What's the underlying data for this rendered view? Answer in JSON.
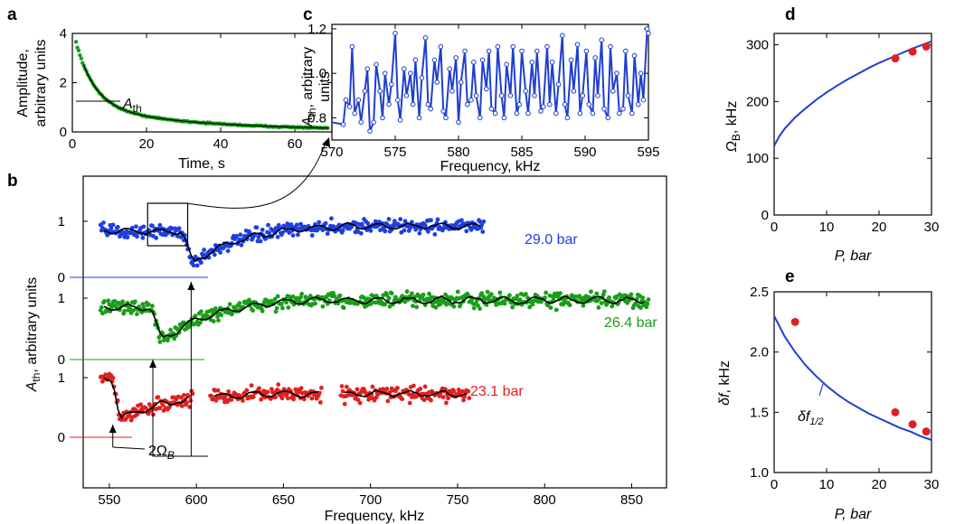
{
  "chart_data": [
    {
      "id": "a",
      "panel_label": "a",
      "type": "scatter",
      "xlabel": "Time, s",
      "ylabel_lines": [
        "Amplitude,",
        "arbitrary units"
      ],
      "xlim": [
        0,
        70
      ],
      "ylim": [
        0,
        4
      ],
      "xticks": [
        0,
        20,
        40,
        60
      ],
      "yticks": [
        0,
        2,
        4
      ],
      "annotation": {
        "text": "A",
        "sub": "th",
        "y": 1.15
      },
      "colors": {
        "points": "#1a9e1a",
        "fit": "#000000"
      },
      "decay": {
        "A0": 2.6,
        "tau": 5.0,
        "offset": 1.0,
        "tau2": 30.0,
        "start": 1.0
      }
    },
    {
      "id": "c",
      "panel_label": "c",
      "type": "line",
      "xlabel": "Frequency, kHz",
      "ylabel": {
        "text": "A",
        "sub": "th",
        "rest": ", arbitrary",
        "line2": "units"
      },
      "xlim": [
        570,
        595
      ],
      "ylim": [
        0.7,
        1.22
      ],
      "xticks": [
        570,
        575,
        580,
        585,
        590,
        595
      ],
      "yticks": [
        0.8,
        1.0,
        1.2
      ],
      "color": "#1f3fcf",
      "x": [
        570.0,
        570.9,
        571.1,
        571.4,
        571.6,
        571.8,
        572.1,
        572.3,
        572.6,
        572.8,
        573.0,
        573.3,
        573.5,
        573.8,
        574.0,
        574.2,
        574.5,
        574.7,
        575.0,
        575.2,
        575.4,
        575.7,
        575.9,
        576.2,
        576.4,
        576.6,
        576.9,
        577.1,
        577.4,
        577.6,
        577.8,
        578.1,
        578.3,
        578.6,
        578.8,
        579.0,
        579.3,
        579.5,
        579.8,
        580.0,
        580.2,
        580.5,
        580.7,
        581.0,
        581.2,
        581.4,
        581.7,
        581.9,
        582.2,
        582.4,
        582.6,
        582.9,
        583.1,
        583.4,
        583.6,
        583.8,
        584.1,
        584.3,
        584.6,
        584.8,
        585.0,
        585.3,
        585.5,
        585.8,
        586.0,
        586.2,
        586.5,
        586.7,
        587.0,
        587.2,
        587.4,
        587.7,
        587.9,
        588.2,
        588.4,
        588.6,
        588.9,
        589.1,
        589.4,
        589.6,
        589.8,
        590.1,
        590.3,
        590.6,
        590.8,
        591.0,
        591.3,
        591.5,
        591.8,
        592.0,
        592.2,
        592.5,
        592.7,
        593.0,
        593.2,
        593.4,
        593.7,
        593.9,
        594.2,
        594.4,
        594.6,
        594.9,
        595.0
      ],
      "y": [
        0.78,
        0.77,
        0.88,
        0.85,
        1.12,
        0.82,
        0.88,
        0.78,
        0.92,
        1.02,
        0.74,
        0.78,
        1.04,
        0.92,
        0.8,
        1.0,
        0.86,
        0.95,
        1.18,
        0.88,
        0.79,
        1.02,
        0.9,
        1.0,
        0.86,
        1.06,
        0.8,
        0.98,
        1.16,
        0.86,
        0.84,
        1.06,
        0.96,
        1.12,
        0.83,
        0.8,
        1.02,
        0.92,
        1.07,
        0.78,
        0.96,
        1.1,
        0.86,
        0.88,
        1.05,
        0.9,
        0.8,
        1.06,
        0.93,
        1.1,
        0.84,
        0.82,
        1.12,
        0.9,
        0.8,
        1.04,
        0.9,
        1.12,
        0.82,
        0.86,
        1.1,
        0.92,
        0.82,
        1.05,
        0.9,
        1.1,
        0.83,
        0.85,
        1.12,
        0.86,
        1.05,
        0.82,
        0.95,
        1.17,
        0.86,
        0.8,
        1.06,
        0.92,
        1.13,
        0.82,
        0.9,
        1.1,
        0.86,
        0.82,
        1.07,
        0.9,
        1.15,
        0.84,
        0.8,
        1.12,
        0.92,
        1.0,
        0.82,
        0.84,
        1.1,
        0.9,
        0.82,
        1.08,
        0.86,
        1.0,
        0.88,
        1.2,
        1.18
      ]
    },
    {
      "id": "b",
      "panel_label": "b",
      "type": "scatter",
      "xlabel": "Frequency, kHz",
      "ylabel": {
        "text": "A",
        "sub": "th",
        "rest": ", arbitrary units"
      },
      "xlim": [
        535,
        870
      ],
      "xticks": [
        550,
        600,
        650,
        700,
        750,
        800,
        850
      ],
      "series": [
        {
          "name": "29.0 bar",
          "color": "#1f3fe0",
          "label_color": "#1f3fe0",
          "ytick_labels": [
            "0",
            "1"
          ],
          "range": [
            545,
            765
          ],
          "dip_start": 592,
          "dip_end": 598,
          "level_before": 0.82,
          "level_dip": 0.25,
          "level_after": 0.95
        },
        {
          "name": "26.4 bar",
          "color": "#1a9e1a",
          "label_color": "#1a9e1a",
          "ytick_labels": [
            "0",
            "1"
          ],
          "range": [
            545,
            860
          ],
          "dip_start": 574,
          "dip_end": 580,
          "level_before": 0.85,
          "level_dip": 0.3,
          "level_after": 1.0
        },
        {
          "name": "23.1 bar",
          "color": "#e02020",
          "label_color": "#e02020",
          "ytick_labels": [
            "0",
            "1"
          ],
          "segments": [
            [
              545,
              598
            ],
            [
              608,
              672
            ],
            [
              683,
              757
            ]
          ],
          "dip_start": 552,
          "dip_end": 556,
          "level_before": 1.0,
          "level_dip": 0.3,
          "level_after": 0.75
        }
      ],
      "annotation": {
        "text": "2Ω",
        "sub": "B",
        "arrows_at": [
          552,
          575,
          597
        ]
      },
      "inset_box": {
        "x0": 572,
        "x1": 595
      }
    },
    {
      "id": "d",
      "panel_label": "d",
      "type": "line",
      "xlabel": "P, bar",
      "ylabel": {
        "text": "Ω",
        "sub": "B",
        "rest": ", kHz"
      },
      "xlim": [
        0,
        30
      ],
      "ylim": [
        0,
        320
      ],
      "xticks": [
        0,
        10,
        20,
        30
      ],
      "yticks": [
        0,
        100,
        200,
        300
      ],
      "curve_color": "#1f3fcf",
      "point_color": "#e02020",
      "curve": {
        "x": [
          0,
          1,
          2,
          4,
          6,
          8,
          10,
          12,
          14,
          16,
          18,
          20,
          22,
          24,
          26,
          28,
          30
        ],
        "y": [
          122,
          139,
          152,
          172,
          188,
          203,
          216,
          228,
          239,
          249,
          259,
          268,
          276,
          284,
          292,
          299,
          306
        ]
      },
      "points": {
        "x": [
          23.1,
          26.4,
          29.0
        ],
        "y": [
          276,
          288,
          297
        ]
      }
    },
    {
      "id": "e",
      "panel_label": "e",
      "type": "line",
      "xlabel": "P, bar",
      "ylabel": {
        "text": "δf",
        "rest": ", kHz"
      },
      "xlim": [
        0,
        30
      ],
      "ylim": [
        1.0,
        2.5
      ],
      "xticks": [
        0,
        10,
        20,
        30
      ],
      "yticks": [
        1.0,
        1.5,
        2.0,
        2.5
      ],
      "yticklabels": [
        "1.0",
        "1.5",
        "2.0",
        "2.5"
      ],
      "curve_color": "#1f3fcf",
      "point_color": "#e02020",
      "curve_label": {
        "text": "δf",
        "sub": "1/2"
      },
      "curve": {
        "x": [
          0,
          2,
          4,
          6,
          8,
          10,
          12,
          14,
          16,
          18,
          20,
          22,
          24,
          26,
          28,
          30
        ],
        "y": [
          2.3,
          2.13,
          2.0,
          1.89,
          1.8,
          1.72,
          1.65,
          1.59,
          1.54,
          1.49,
          1.45,
          1.41,
          1.37,
          1.34,
          1.3,
          1.27
        ]
      },
      "points": {
        "x": [
          4.0,
          23.1,
          26.4,
          29.0
        ],
        "y": [
          2.25,
          1.5,
          1.4,
          1.34
        ]
      }
    }
  ]
}
